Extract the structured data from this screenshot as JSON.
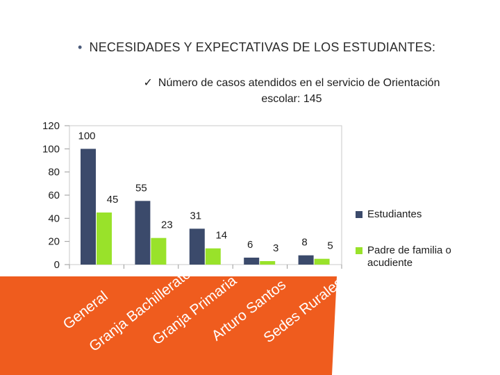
{
  "slide": {
    "bullet": "•",
    "title": "NECESIDADES Y EXPECTATIVAS DE LOS ESTUDIANTES:",
    "check": "✓",
    "subtitle": "Número de casos atendidos en  el servicio de Orientación escolar: 145"
  },
  "chart_data": {
    "type": "bar",
    "categories": [
      "General",
      "Granja Bachillerato",
      "Granja Primaria",
      "Arturo Santos",
      "Sedes Rurales"
    ],
    "series": [
      {
        "name": "Estudiantes",
        "color": "#3b4a6b",
        "values": [
          100,
          55,
          31,
          6,
          8
        ]
      },
      {
        "name": "Padre de familia o acudiente",
        "color": "#99e22a",
        "values": [
          45,
          23,
          14,
          3,
          5
        ]
      }
    ],
    "yticks": [
      120,
      100,
      80,
      60,
      40,
      20,
      0
    ],
    "ylim": [
      0,
      120
    ],
    "legend_position": "right",
    "category_label_style": "rotated, white on orange banner"
  },
  "colors": {
    "banner": "#ef5c1e",
    "category_text": "#ffffff",
    "grid": "#c9c9c9"
  }
}
